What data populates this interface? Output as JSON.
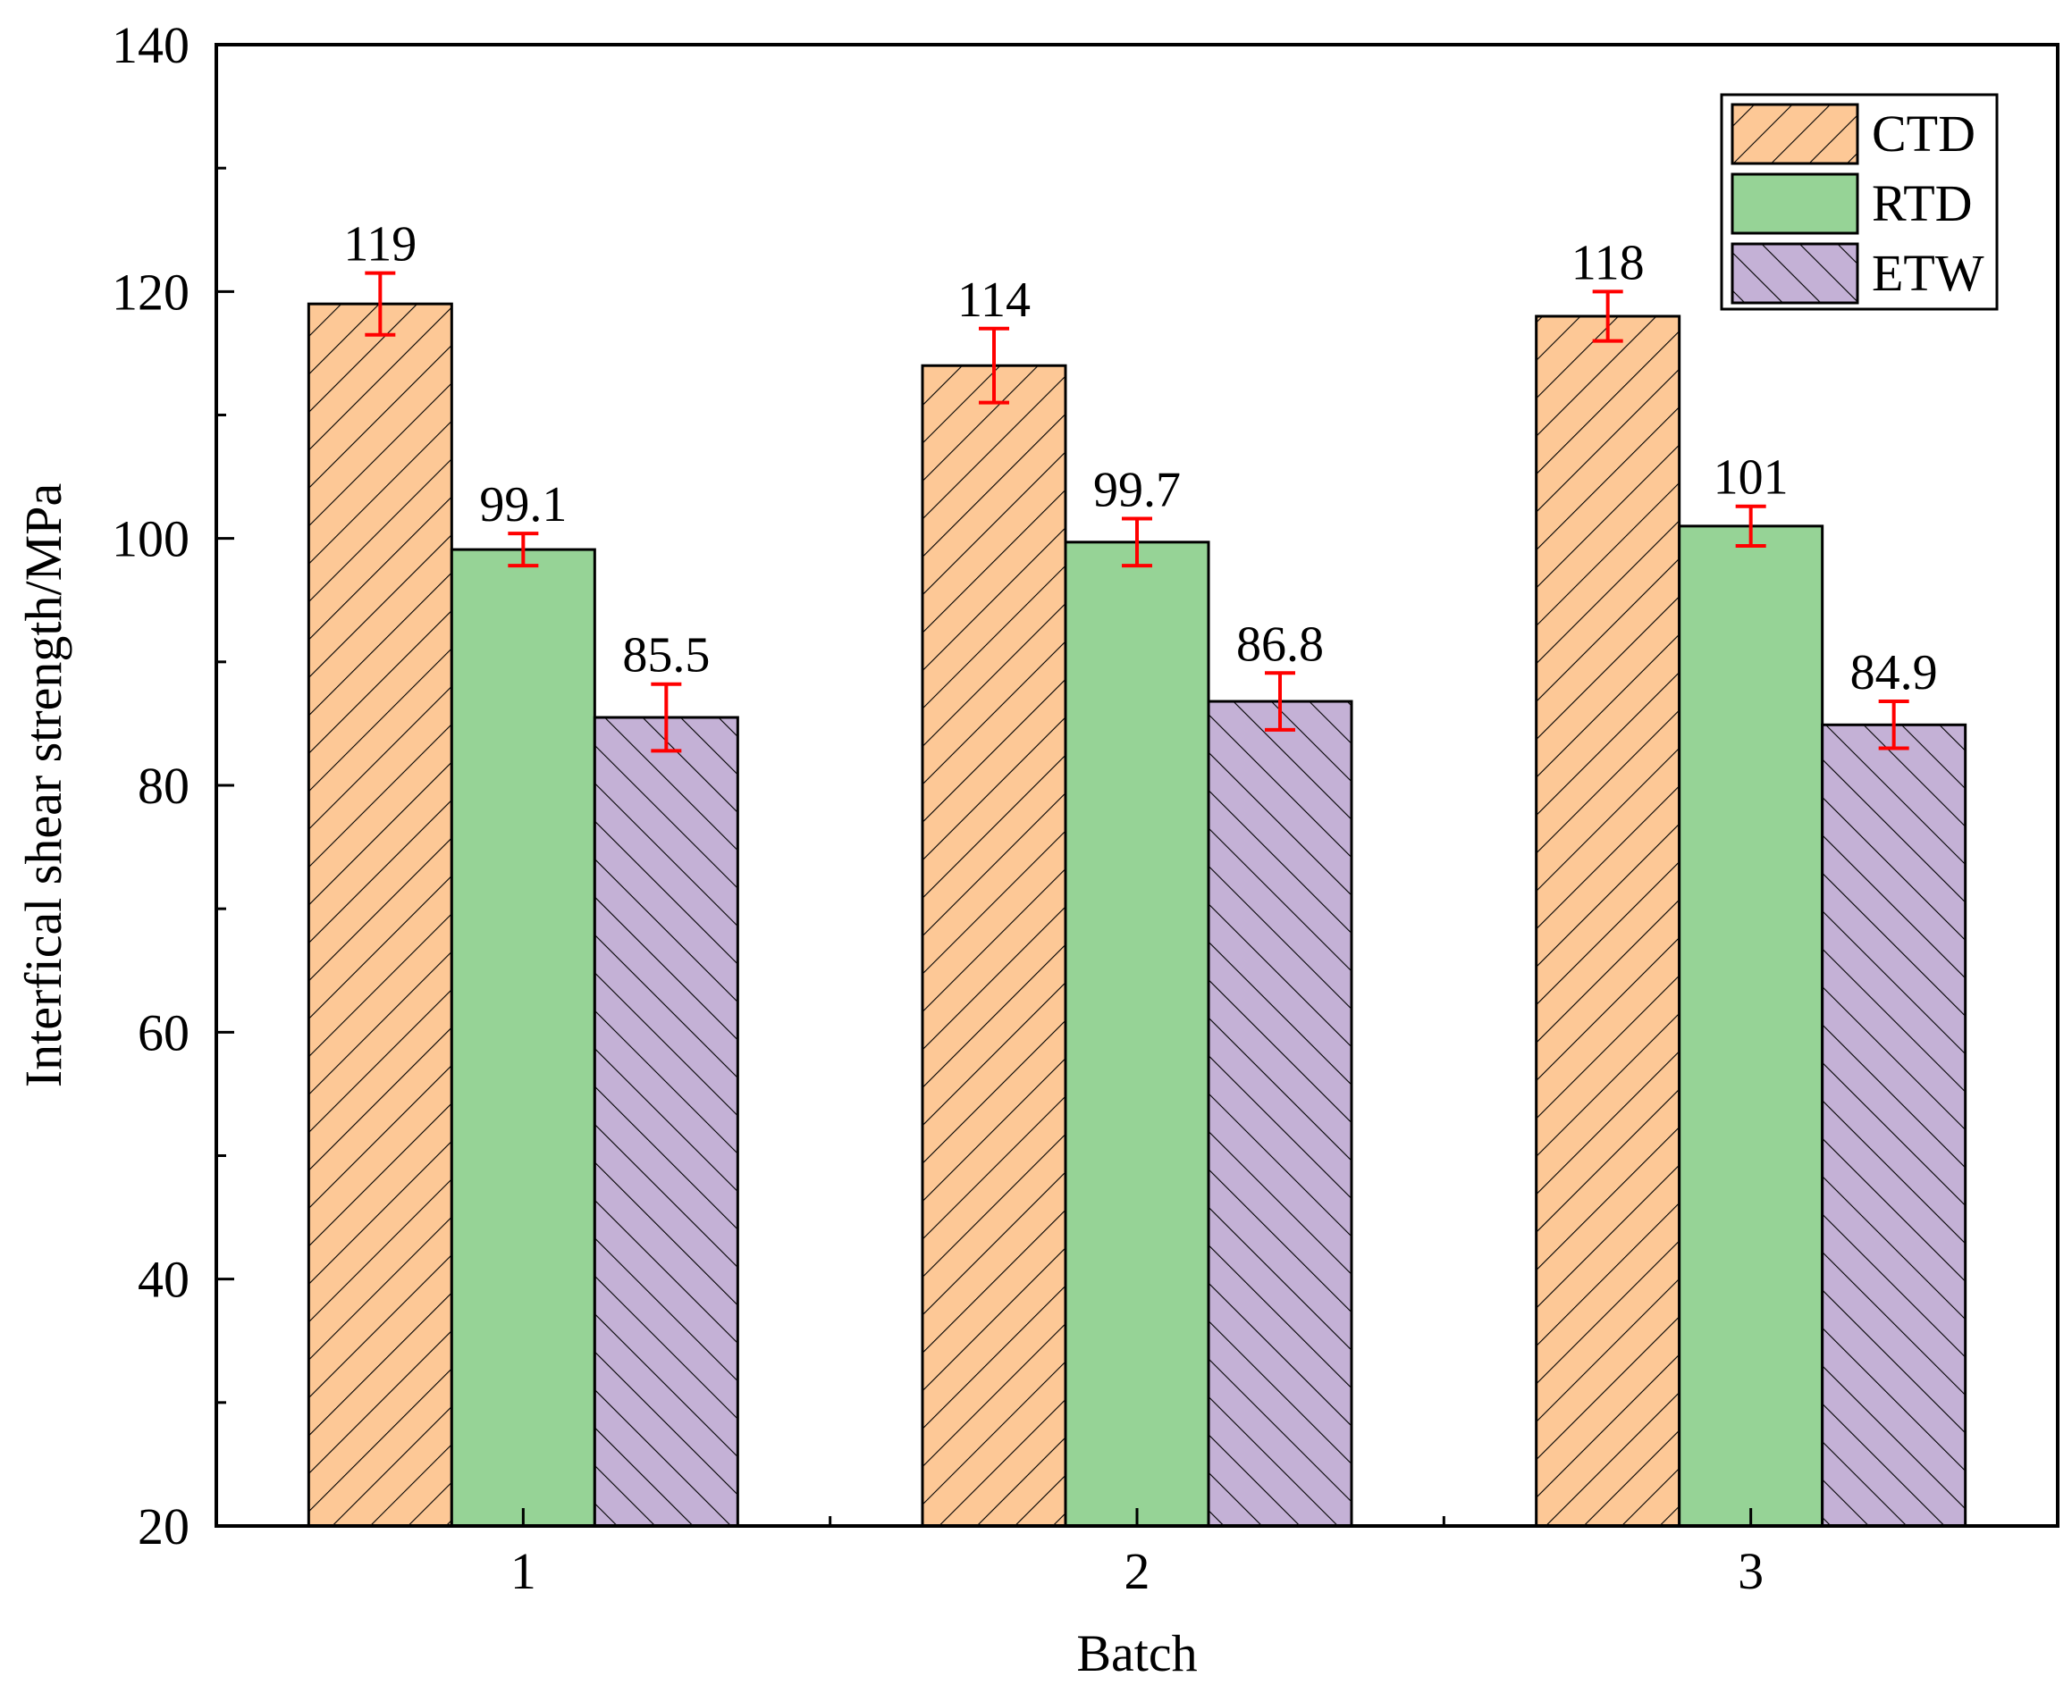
{
  "chart_data": {
    "type": "bar",
    "title": "",
    "xlabel": "Batch",
    "ylabel": "Interfical shear strength/MPa",
    "categories": [
      "1",
      "2",
      "3"
    ],
    "ylim": [
      20,
      140
    ],
    "yticks": [
      "20",
      "40",
      "60",
      "80",
      "100",
      "120",
      "140"
    ],
    "grid": false,
    "legend_position": "top-right",
    "error_bar_color": "#ff0000",
    "series": [
      {
        "name": "CTD",
        "color": "#fdc896",
        "pattern": "diagonal-forward",
        "values": [
          119,
          114,
          118
        ],
        "errors": [
          2.5,
          3.0,
          2.0
        ],
        "labels": [
          "119",
          "114",
          "118"
        ]
      },
      {
        "name": "RTD",
        "color": "#96d396",
        "pattern": "solid",
        "values": [
          99.1,
          99.7,
          101
        ],
        "errors": [
          1.3,
          1.9,
          1.6
        ],
        "labels": [
          "99.1",
          "99.7",
          "101"
        ]
      },
      {
        "name": "ETW",
        "color": "#c4b1d6",
        "pattern": "diagonal-backward",
        "values": [
          85.5,
          86.8,
          84.9
        ],
        "errors": [
          2.7,
          2.3,
          1.9
        ],
        "labels": [
          "85.5",
          "86.8",
          "84.9"
        ]
      }
    ]
  }
}
